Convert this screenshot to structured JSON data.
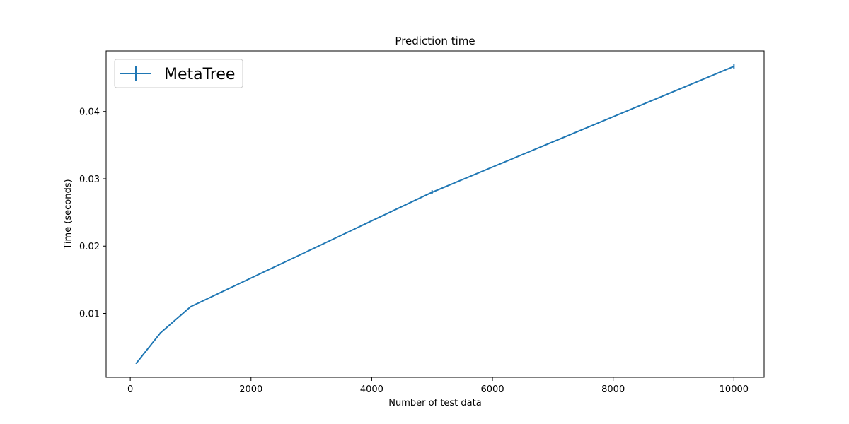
{
  "chart_data": {
    "type": "line",
    "title": "Prediction time",
    "xlabel": "Number of test data",
    "ylabel": "Time (seconds)",
    "xlim": [
      -400,
      10500
    ],
    "ylim": [
      0.0005,
      0.049
    ],
    "xticks": [
      0,
      2000,
      4000,
      6000,
      8000,
      10000
    ],
    "xtick_labels": [
      "0",
      "2000",
      "4000",
      "6000",
      "8000",
      "10000"
    ],
    "yticks": [
      0.01,
      0.02,
      0.03,
      0.04
    ],
    "ytick_labels": [
      "0.01",
      "0.02",
      "0.03",
      "0.04"
    ],
    "grid": false,
    "legend_position": "top-left",
    "series": [
      {
        "name": "MetaTree",
        "color": "#1f77b4",
        "x": [
          100,
          500,
          1000,
          5000,
          10000
        ],
        "y": [
          0.0026,
          0.0071,
          0.011,
          0.028,
          0.0467
        ],
        "yerr": [
          0.0001,
          0.0001,
          0.0001,
          0.0003,
          0.0004
        ]
      }
    ]
  }
}
